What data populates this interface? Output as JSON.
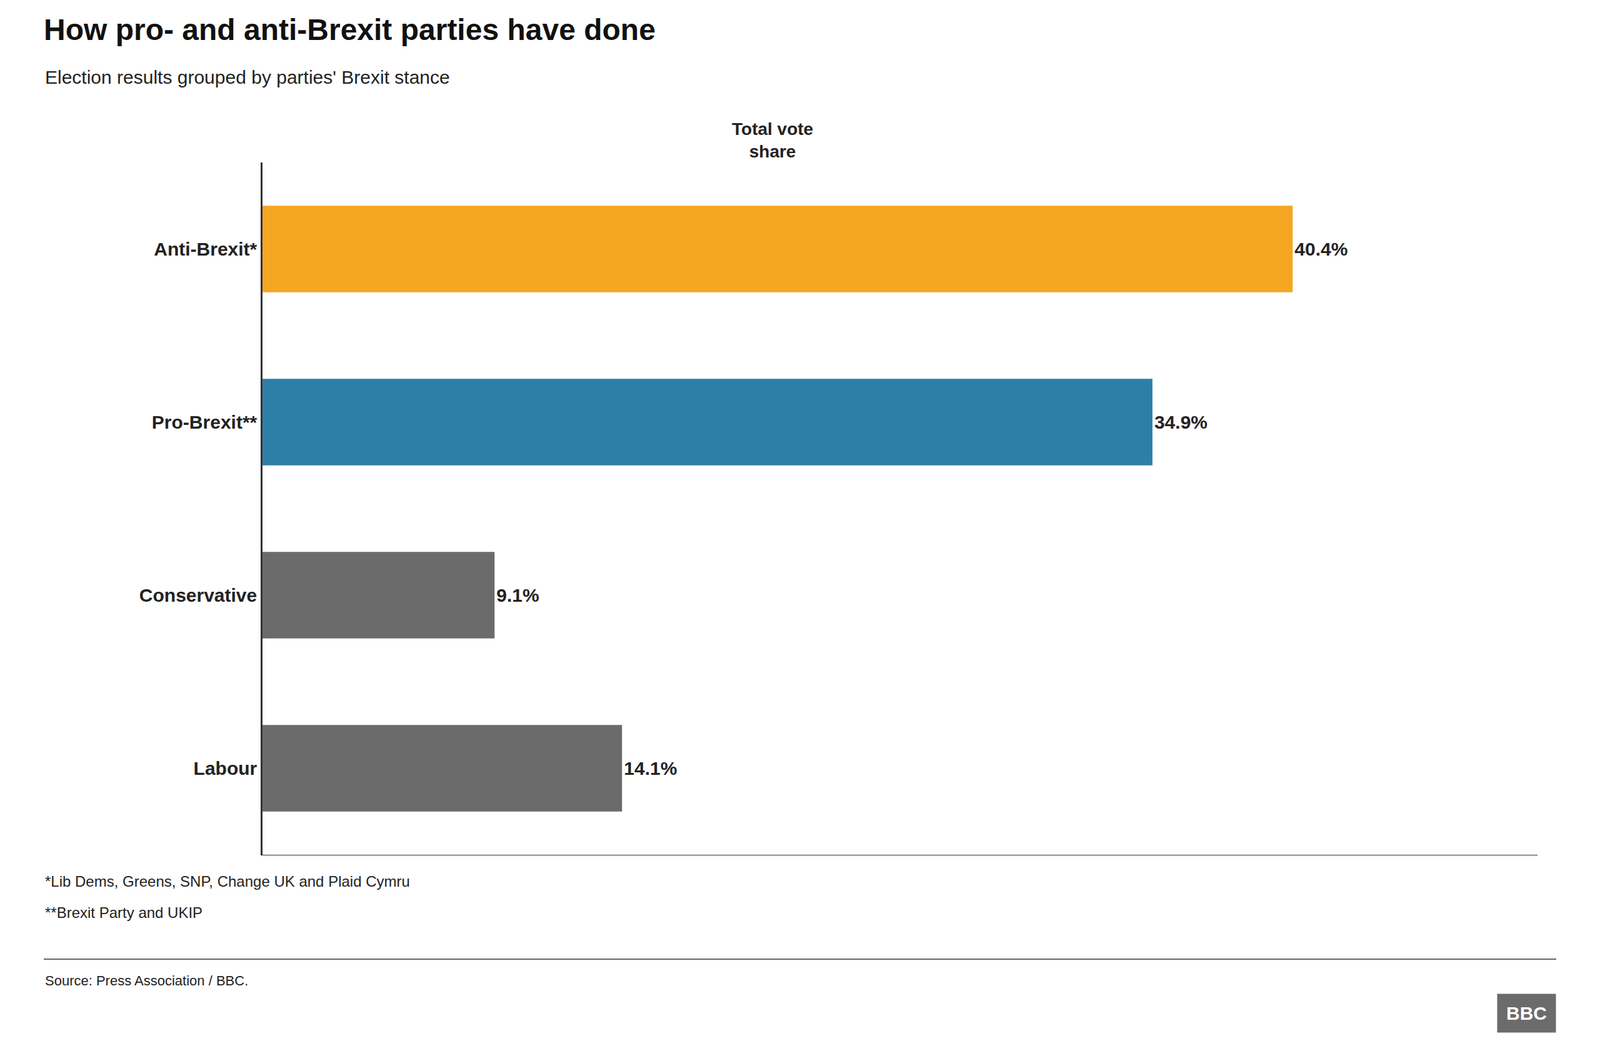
{
  "chart_data": {
    "type": "bar",
    "orientation": "horizontal",
    "title": "How pro- and anti-Brexit parties have done",
    "subtitle": "Election results grouped by parties' Brexit stance",
    "categories": [
      "Anti-Brexit*",
      "Pro-Brexit**",
      "Conservative",
      "Labour"
    ],
    "values": [
      40.4,
      34.9,
      9.1,
      14.1
    ],
    "value_labels": [
      "40.4%",
      "34.9%",
      "9.1%",
      "14.1%"
    ],
    "colors": [
      "#F5A623",
      "#2E7FA8",
      "#6B6B6B",
      "#6B6B6B"
    ],
    "xlim": [
      0,
      50
    ],
    "data_labels": true,
    "tick_labels": "y",
    "grid": false,
    "annotations": [
      "Total vote\nshare",
      "*Lib Dems, Greens, SNP, Change UK and Plaid Cymru",
      "**Brexit Party and UKIP",
      "Source: Press Association / BBC.",
      "BBC"
    ]
  }
}
